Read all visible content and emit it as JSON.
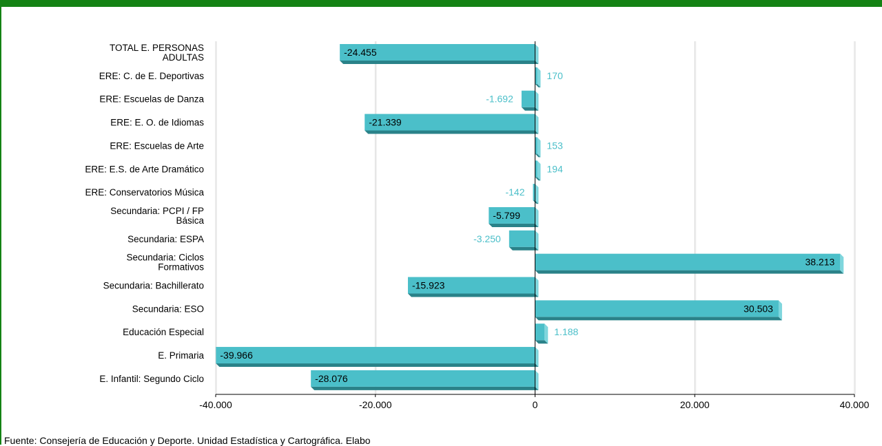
{
  "source_note": "Fuente: Consejería de Educación y Deporte. Unidad Estadística y Cartográfica. Elabo",
  "colors": {
    "header_bar": "#148214",
    "bar_face": "#4bbfc9",
    "bar_top": "#7fd6dd",
    "bar_bottom": "#2a8289",
    "label_inside": "#000000",
    "label_outside": "#4bbfc9"
  },
  "chart_data": {
    "type": "bar",
    "orientation": "horizontal",
    "categories": [
      [
        "TOTAL E. PERSONAS",
        "ADULTAS"
      ],
      [
        "ERE: C. de E. Deportivas"
      ],
      [
        "ERE: Escuelas de Danza"
      ],
      [
        "ERE: E. O. de Idiomas"
      ],
      [
        "ERE: Escuelas de Arte"
      ],
      [
        "ERE: E.S. de Arte Dramático"
      ],
      [
        "ERE: Conservatorios Música"
      ],
      [
        "Secundaria: PCPI / FP",
        "Básica"
      ],
      [
        "Secundaria: ESPA"
      ],
      [
        "Secundaria: Ciclos",
        "Formativos"
      ],
      [
        "Secundaria: Bachillerato"
      ],
      [
        "Secundaria: ESO"
      ],
      [
        "Educación Especial"
      ],
      [
        "E. Primaria"
      ],
      [
        "E. Infantil: Segundo Ciclo"
      ]
    ],
    "values": [
      -24455,
      170,
      -1692,
      -21339,
      153,
      194,
      -142,
      -5799,
      -3250,
      38213,
      -15923,
      30503,
      1188,
      -39966,
      -28076
    ],
    "value_labels": [
      "-24.455",
      "170",
      "-1.692",
      "-21.339",
      "153",
      "194",
      "-142",
      "-5.799",
      "-3.250",
      "38.213",
      "-15.923",
      "30.503",
      "1.188",
      "-39.966",
      "-28.076"
    ],
    "xlim": [
      -40000,
      40000
    ],
    "x_ticks": [
      -40000,
      -20000,
      0,
      20000,
      40000
    ],
    "x_tick_labels": [
      "-40.000",
      "-20.000",
      "0",
      "20.000",
      "40.000"
    ],
    "grid": "vertical",
    "title": "",
    "xlabel": "",
    "ylabel": ""
  }
}
